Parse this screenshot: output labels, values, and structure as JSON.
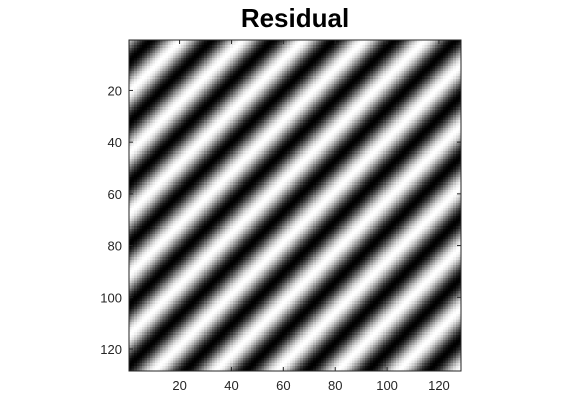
{
  "figure": {
    "title": "Residual"
  },
  "chart_data": {
    "type": "heatmap",
    "title": "Residual",
    "xlabel": "",
    "ylabel": "",
    "colormap": "gray",
    "matrix_size": [
      128,
      128
    ],
    "xlim": [
      0.5,
      128.5
    ],
    "ylim": [
      0.5,
      128.5
    ],
    "y_direction": "reverse",
    "x_ticks": [
      20,
      40,
      60,
      80,
      100,
      120
    ],
    "y_ticks": [
      20,
      40,
      60,
      80,
      100,
      120
    ],
    "pattern": {
      "description_function": "cos",
      "orientation": "diagonal stripes rising to the upper right",
      "period_along_rows": 23.5,
      "period_along_columns": 23.5,
      "value_range": [
        -1,
        1
      ]
    },
    "grid": false,
    "legend": "none"
  }
}
